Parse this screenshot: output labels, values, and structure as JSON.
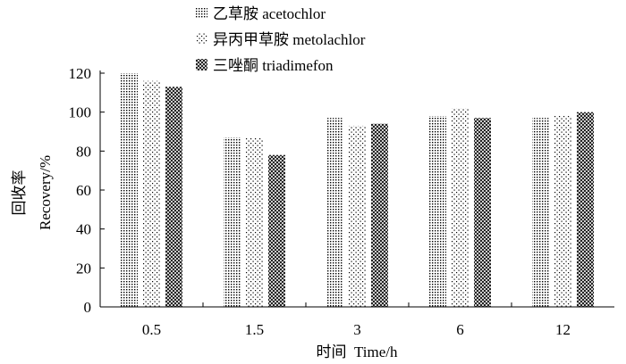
{
  "chart_data": {
    "type": "bar",
    "categories": [
      "0.5",
      "1.5",
      "3",
      "6",
      "12"
    ],
    "series": [
      {
        "name": "乙草胺 acetochlor",
        "values": [
          120,
          87,
          97,
          98,
          97
        ],
        "pattern": "fine-dots"
      },
      {
        "name": "异丙甲草胺 metolachlor",
        "values": [
          116,
          87,
          93,
          102,
          98
        ],
        "pattern": "sparse-dots"
      },
      {
        "name": "三唑酮 triadimefon",
        "values": [
          113,
          78,
          94,
          97,
          100
        ],
        "pattern": "crosshatch"
      }
    ],
    "xlabel": "时间  Time/h",
    "ylabel_cn": "回收率",
    "ylabel_en": "Recovery/%",
    "ylim": [
      0,
      120
    ],
    "yticks": [
      "0",
      "20",
      "40",
      "60",
      "80",
      "100",
      "120"
    ],
    "grid": false,
    "legend_position": "top-center",
    "colors": {
      "ink": "#000000",
      "background": "#ffffff"
    }
  }
}
